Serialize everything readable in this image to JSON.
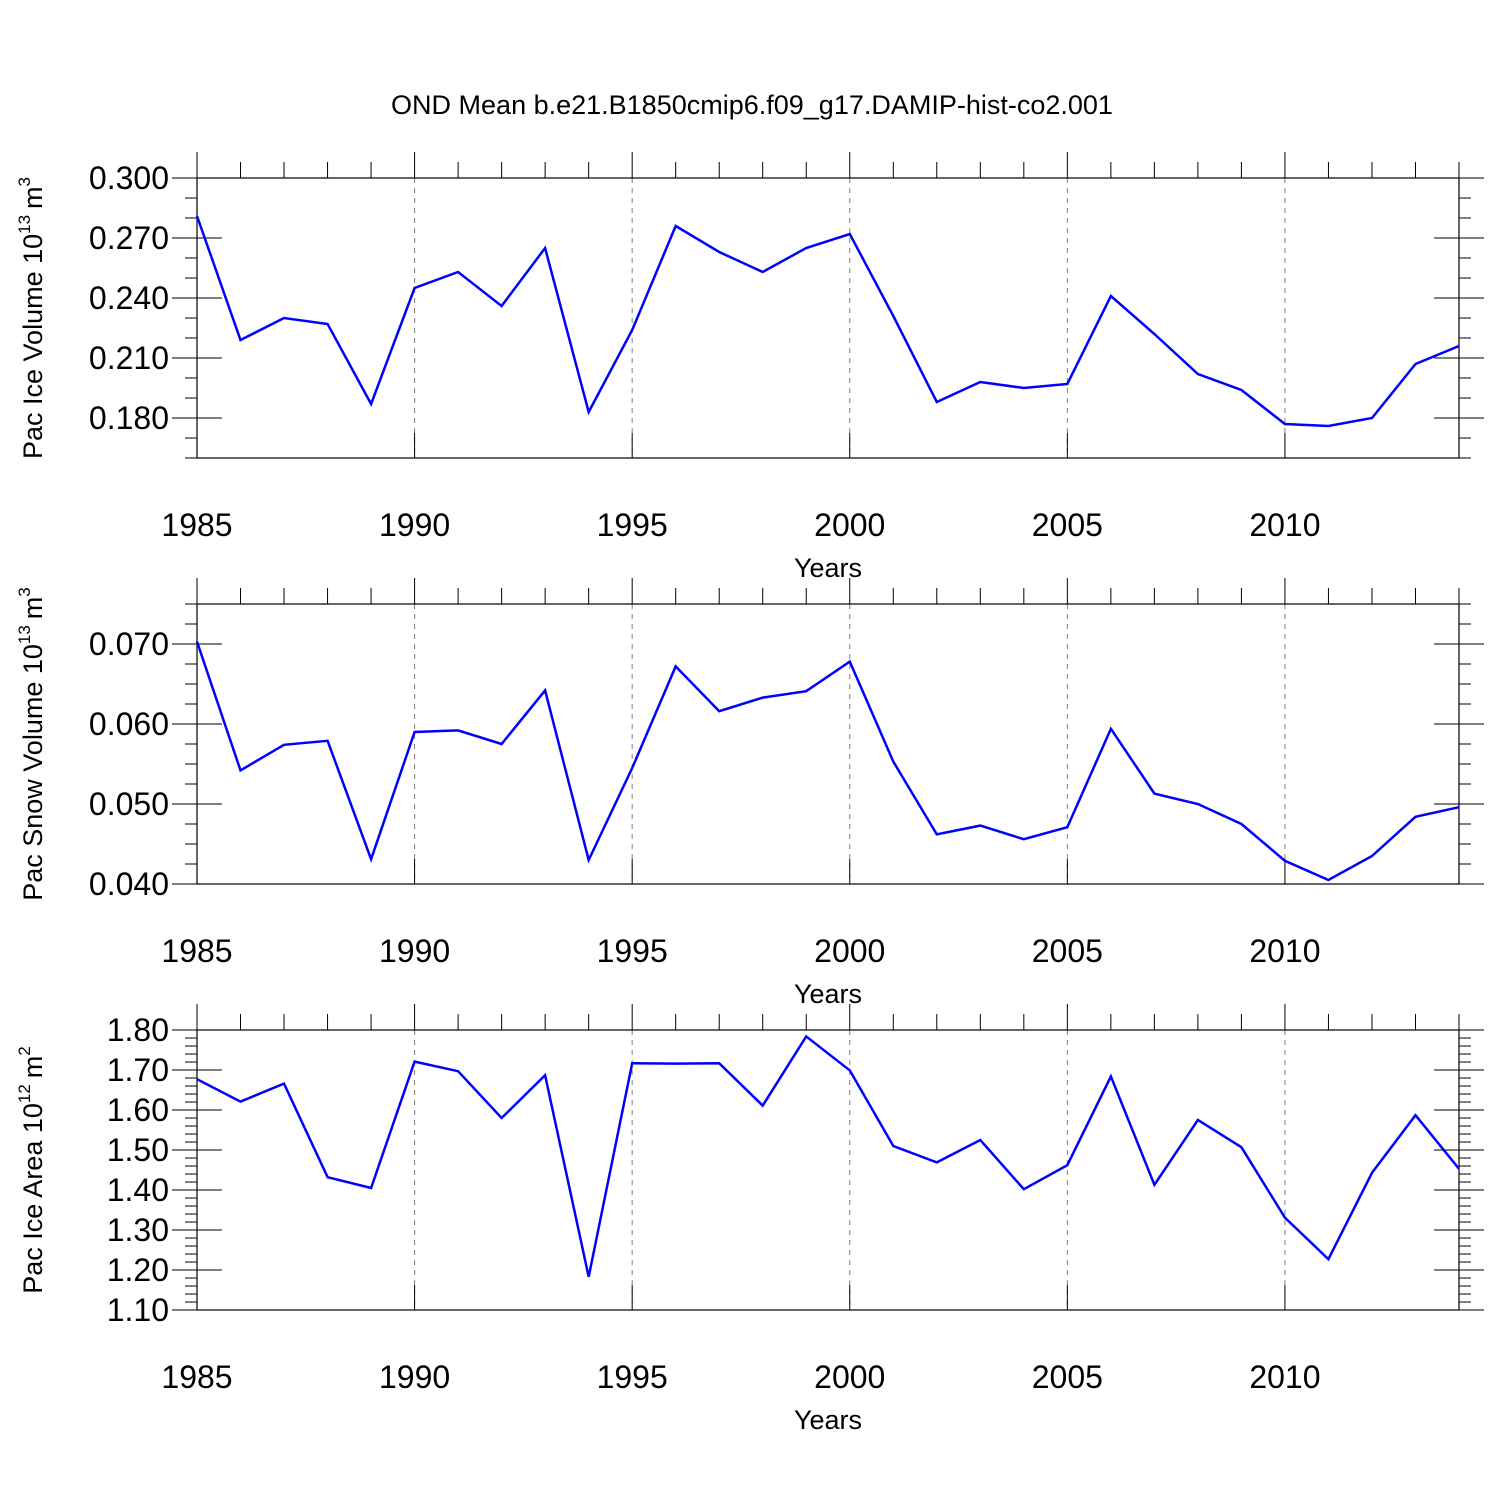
{
  "figure": {
    "title": "OND Mean b.e21.B1850cmip6.f09_g17.DAMIP-hist-co2.001"
  },
  "colors": {
    "series_line": "#0000ff",
    "axis": "#000000",
    "grid": "#808080",
    "background": "#ffffff"
  },
  "chart_data": [
    {
      "type": "line",
      "ylabel_main": "Pac Ice Volume 10",
      "ylabel_exp": "13",
      "ylabel_unit": "m",
      "ylabel_unit_exp": "3",
      "xlabel": "Years",
      "x": [
        1985,
        1986,
        1987,
        1988,
        1989,
        1990,
        1991,
        1992,
        1993,
        1994,
        1995,
        1996,
        1997,
        1998,
        1999,
        2000,
        2001,
        2002,
        2003,
        2004,
        2005,
        2006,
        2007,
        2008,
        2009,
        2010,
        2011,
        2012,
        2013,
        2014
      ],
      "values": [
        0.281,
        0.219,
        0.23,
        0.227,
        0.187,
        0.245,
        0.253,
        0.236,
        0.265,
        0.183,
        0.224,
        0.276,
        0.263,
        0.253,
        0.265,
        0.272,
        0.231,
        0.188,
        0.198,
        0.195,
        0.197,
        0.241,
        0.222,
        0.202,
        0.194,
        0.177,
        0.176,
        0.18,
        0.207,
        0.216
      ],
      "xlim": [
        1985,
        2014
      ],
      "ylim": [
        0.16,
        0.3
      ],
      "yticks": [
        0.18,
        0.21,
        0.24,
        0.27,
        0.3
      ],
      "ytick_labels": [
        "0.180",
        "0.210",
        "0.240",
        "0.270",
        "0.300"
      ],
      "y_minor_step": 0.01,
      "xticks": [
        1985,
        1990,
        1995,
        2000,
        2005,
        2010
      ],
      "xtick_labels": [
        "1985",
        "1990",
        "1995",
        "2000",
        "2005",
        "2010"
      ],
      "vgrid": [
        1990,
        1995,
        2000,
        2005,
        2010
      ],
      "grid": "vertical dashed"
    },
    {
      "type": "line",
      "ylabel_main": "Pac Snow Volume 10",
      "ylabel_exp": "13",
      "ylabel_unit": "m",
      "ylabel_unit_exp": "3",
      "xlabel": "Years",
      "x": [
        1985,
        1986,
        1987,
        1988,
        1989,
        1990,
        1991,
        1992,
        1993,
        1994,
        1995,
        1996,
        1997,
        1998,
        1999,
        2000,
        2001,
        2002,
        2003,
        2004,
        2005,
        2006,
        2007,
        2008,
        2009,
        2010,
        2011,
        2012,
        2013,
        2014
      ],
      "values": [
        0.0703,
        0.0542,
        0.0574,
        0.0579,
        0.0431,
        0.059,
        0.0592,
        0.0575,
        0.0642,
        0.043,
        0.0545,
        0.0672,
        0.0616,
        0.0633,
        0.0641,
        0.0678,
        0.0553,
        0.0462,
        0.0473,
        0.0456,
        0.0471,
        0.0594,
        0.0513,
        0.05,
        0.0475,
        0.0429,
        0.0405,
        0.0435,
        0.0484,
        0.0496
      ],
      "xlim": [
        1985,
        2014
      ],
      "ylim": [
        0.04,
        0.075
      ],
      "yticks": [
        0.04,
        0.05,
        0.06,
        0.07
      ],
      "ytick_labels": [
        "0.040",
        "0.050",
        "0.060",
        "0.070"
      ],
      "y_minor_step": 0.0025,
      "xticks": [
        1985,
        1990,
        1995,
        2000,
        2005,
        2010
      ],
      "xtick_labels": [
        "1985",
        "1990",
        "1995",
        "2000",
        "2005",
        "2010"
      ],
      "vgrid": [
        1990,
        1995,
        2000,
        2005,
        2010
      ],
      "grid": "vertical dashed"
    },
    {
      "type": "line",
      "ylabel_main": "Pac Ice Area 10",
      "ylabel_exp": "12",
      "ylabel_unit": "m",
      "ylabel_unit_exp": "2",
      "xlabel": "Years",
      "x": [
        1985,
        1986,
        1987,
        1988,
        1989,
        1990,
        1991,
        1992,
        1993,
        1994,
        1995,
        1996,
        1997,
        1998,
        1999,
        2000,
        2001,
        2002,
        2003,
        2004,
        2005,
        2006,
        2007,
        2008,
        2009,
        2010,
        2011,
        2012,
        2013,
        2014
      ],
      "values": [
        1.677,
        1.621,
        1.666,
        1.432,
        1.405,
        1.721,
        1.697,
        1.58,
        1.687,
        1.183,
        1.717,
        1.716,
        1.717,
        1.611,
        1.784,
        1.699,
        1.51,
        1.469,
        1.525,
        1.402,
        1.462,
        1.684,
        1.413,
        1.575,
        1.507,
        1.331,
        1.227,
        1.443,
        1.587,
        1.453
      ],
      "xlim": [
        1985,
        2014
      ],
      "ylim": [
        1.1,
        1.8
      ],
      "yticks": [
        1.1,
        1.2,
        1.3,
        1.4,
        1.5,
        1.6,
        1.7,
        1.8
      ],
      "ytick_labels": [
        "1.10",
        "1.20",
        "1.30",
        "1.40",
        "1.50",
        "1.60",
        "1.70",
        "1.80"
      ],
      "y_minor_step": 0.02,
      "xticks": [
        1985,
        1990,
        1995,
        2000,
        2005,
        2010
      ],
      "xtick_labels": [
        "1985",
        "1990",
        "1995",
        "2000",
        "2005",
        "2010"
      ],
      "vgrid": [
        1990,
        1995,
        2000,
        2005,
        2010
      ],
      "grid": "vertical dashed"
    }
  ]
}
